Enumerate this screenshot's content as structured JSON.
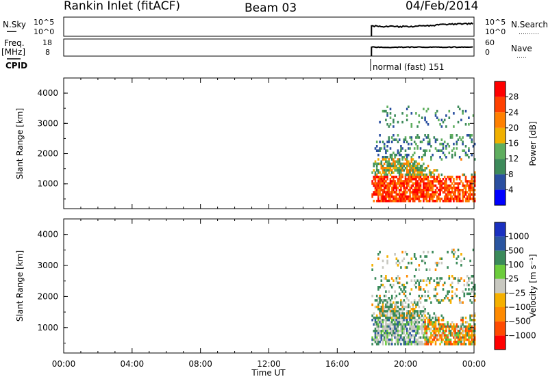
{
  "header": {
    "station": "Rankin Inlet (fitACF)",
    "beam": "Beam 03",
    "date": "04/Feb/2014"
  },
  "top_panels": {
    "nsky_label": "N.Sky",
    "nsky_ticks": [
      "10^5",
      "10^0"
    ],
    "nsearch_label": "N.Search",
    "nsearch_ticks": [
      "10^5",
      "10^0"
    ],
    "freq_label": "Freq.",
    "freq_unit": "[MHz]",
    "freq_ticks": [
      "18",
      "8"
    ],
    "nave_label": "Nave",
    "nave_ticks": [
      "60",
      "0"
    ],
    "cpid_label": "CPID",
    "cpid_value": "normal (fast) 151"
  },
  "colors": {
    "power_scale": [
      "#0000ff",
      "#2a4fa0",
      "#3d8a5a",
      "#5fae5f",
      "#f0b000",
      "#ff8000",
      "#ff4000",
      "#ff0000"
    ],
    "velocity_scale": [
      "#ff0000",
      "#ff4a00",
      "#ff8a00",
      "#f5b000",
      "#c8c8c0",
      "#6ccc3c",
      "#3a8a5a",
      "#2a55a0",
      "#1a30c0"
    ]
  },
  "chart_data": [
    {
      "type": "heatmap",
      "title": "",
      "xlabel": "Time UT",
      "ylabel": "Slant Range [km]",
      "x_ticks": [
        "00:00",
        "04:00",
        "08:00",
        "12:00",
        "16:00",
        "20:00",
        "00:00"
      ],
      "y_ticks": [
        1000,
        2000,
        3000,
        4000
      ],
      "ylim": [
        180,
        4500
      ],
      "colorbar_label": "Power [dB]",
      "colorbar_ticks": [
        "4",
        "8",
        "12",
        "16",
        "20",
        "24",
        "28"
      ],
      "colorbar_range": [
        0,
        32
      ],
      "data_time_start": "18:00",
      "data_time_end": "00:00"
    },
    {
      "type": "heatmap",
      "title": "",
      "xlabel": "Time UT",
      "ylabel": "Slant Range [km]",
      "x_ticks": [
        "00:00",
        "04:00",
        "08:00",
        "12:00",
        "16:00",
        "20:00",
        "00:00"
      ],
      "y_ticks": [
        1000,
        2000,
        3000,
        4000
      ],
      "ylim": [
        180,
        4500
      ],
      "colorbar_label": "Velocity [m s⁻¹]",
      "colorbar_ticks": [
        "1000",
        "500",
        "100",
        "25",
        "−25",
        "−100",
        "−500",
        "−1000"
      ],
      "data_time_start": "18:00",
      "data_time_end": "00:00"
    }
  ]
}
